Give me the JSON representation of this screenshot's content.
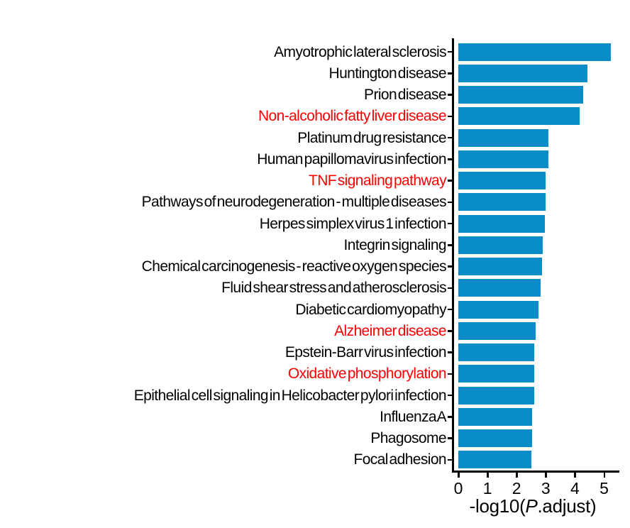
{
  "chart_data": {
    "type": "bar",
    "orientation": "horizontal",
    "title": "",
    "xlabel": "-log10(P.adjust)",
    "xlabel_parts": {
      "prefix": "-log10(",
      "italic": "P",
      "suffix": ".adjust)"
    },
    "ylabel": "",
    "xticks": [
      0,
      1,
      2,
      3,
      4,
      5
    ],
    "xlim": [
      0,
      5.6
    ],
    "grid": false,
    "legend": "none",
    "bar_color": "#0A8CC8",
    "default_label_color": "#000000",
    "highlight_label_color": "#FF0000",
    "categories": [
      "Amyotrophic lateral sclerosis",
      "Huntington disease",
      "Prion disease",
      "Non-alcoholic fatty liver disease",
      "Platinum drug resistance",
      "Human papillomavirus infection",
      "TNF signaling pathway",
      "Pathways of neurodegeneration - multiple diseases",
      "Herpes simplex virus 1 infection",
      "Integrin signaling",
      "Chemical carcinogenesis - reactive oxygen species",
      "Fluid shear stress and atherosclerosis",
      "Diabetic cardiomyopathy",
      "Alzheimer disease",
      "Epstein-Barr virus infection",
      "Oxidative phosphorylation",
      "Epithelial cell signaling in Helicobacter pylori infection",
      "Influenza A",
      "Phagosome",
      "Focal adhesion"
    ],
    "values": [
      5.24,
      4.42,
      4.28,
      4.15,
      3.1,
      3.08,
      3.0,
      3.0,
      2.98,
      2.9,
      2.86,
      2.82,
      2.76,
      2.66,
      2.6,
      2.6,
      2.6,
      2.52,
      2.52,
      2.5
    ],
    "highlighted": [
      false,
      false,
      false,
      true,
      false,
      false,
      true,
      false,
      false,
      false,
      false,
      false,
      false,
      true,
      false,
      true,
      false,
      false,
      false,
      false
    ]
  }
}
